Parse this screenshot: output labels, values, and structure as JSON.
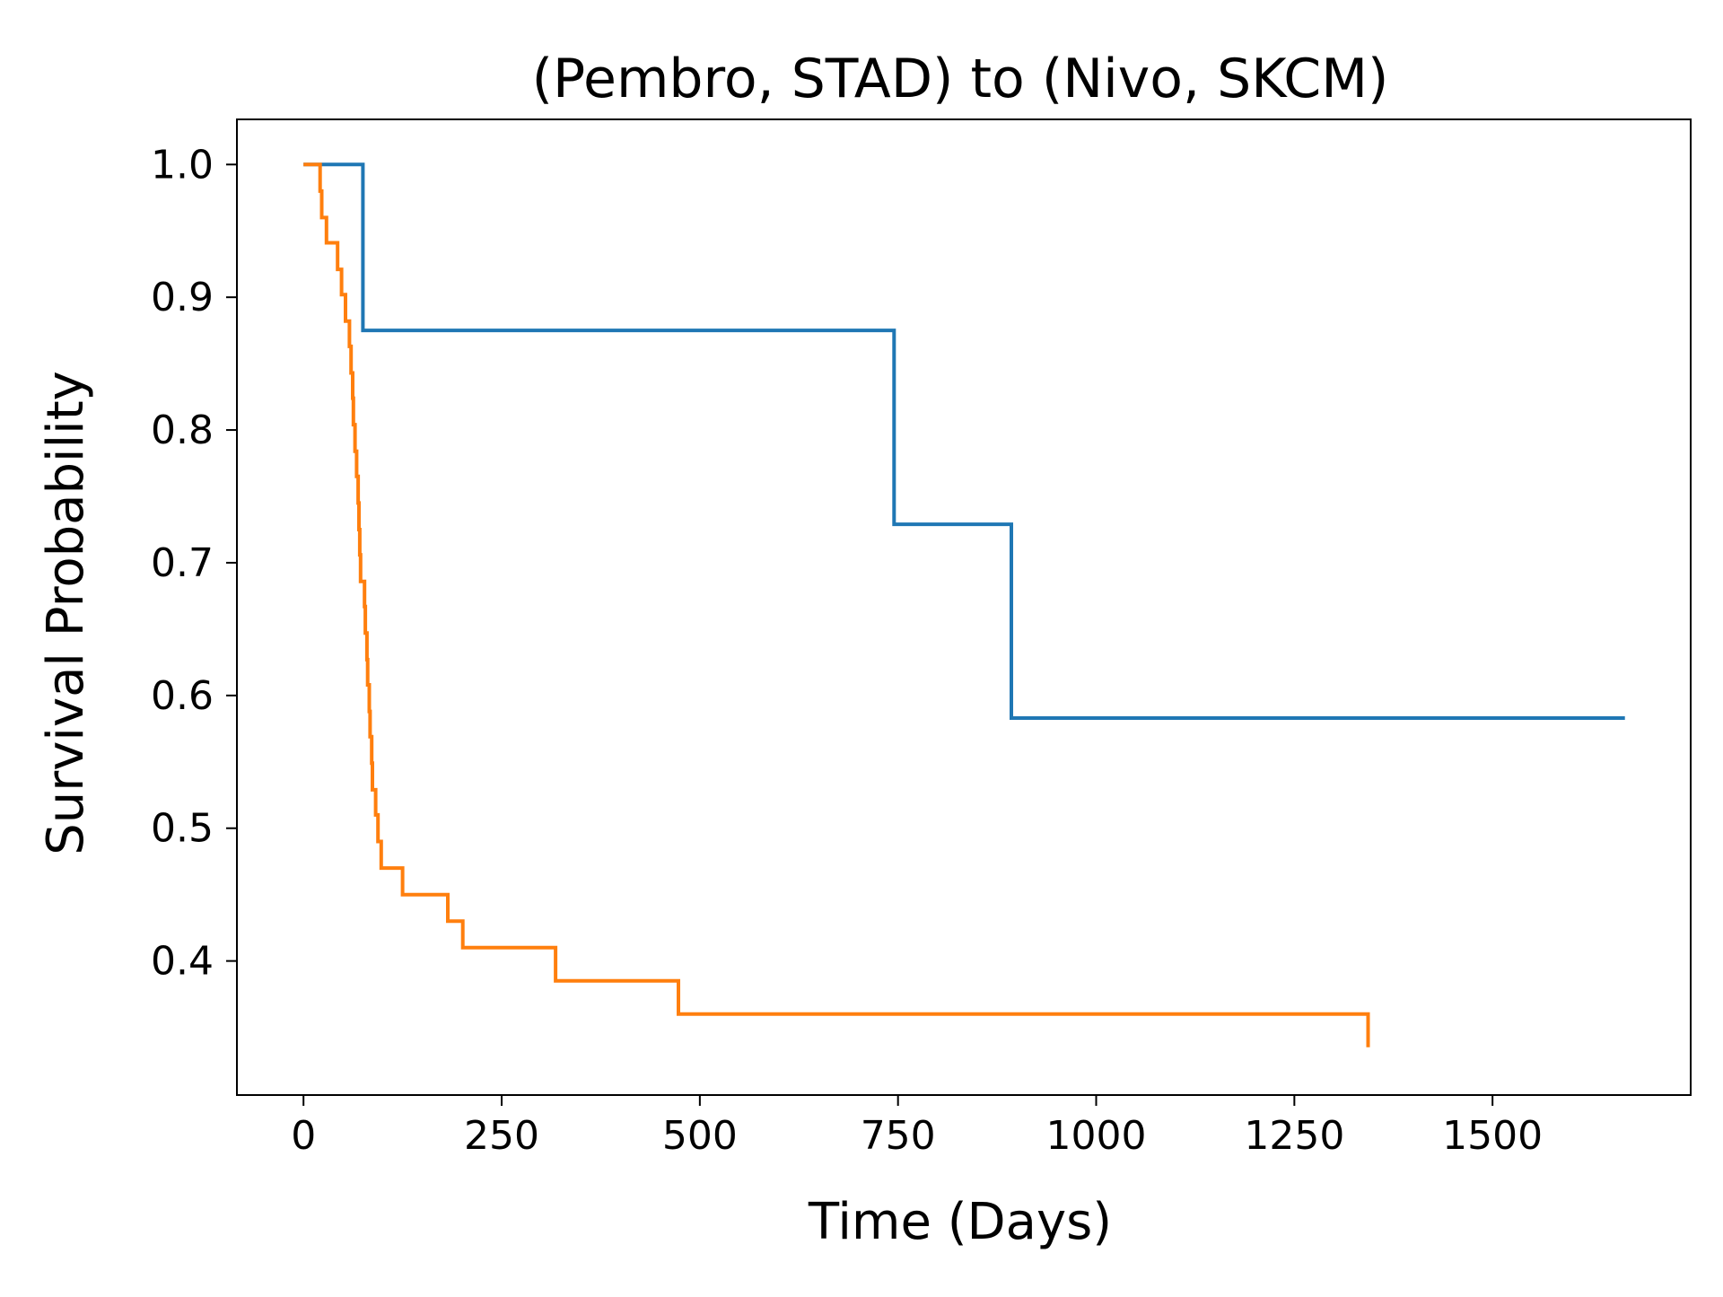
{
  "chart_data": {
    "type": "line",
    "step": true,
    "title": "(Pembro, STAD) to (Nivo, SKCM)",
    "xlabel": "Time (Days)",
    "ylabel": "Survival Probability",
    "xlim": [
      -84,
      1750
    ],
    "ylim": [
      0.299,
      1.034
    ],
    "xticks": [
      0,
      250,
      500,
      750,
      1000,
      1250,
      1500
    ],
    "xtick_labels": [
      "0",
      "250",
      "500",
      "750",
      "1000",
      "1250",
      "1500"
    ],
    "yticks": [
      0.4,
      0.5,
      0.6,
      0.7,
      0.8,
      0.9,
      1.0
    ],
    "ytick_labels": [
      "0.4",
      "0.5",
      "0.6",
      "0.7",
      "0.8",
      "0.9",
      "1.0"
    ],
    "grid": false,
    "legend": false,
    "series": [
      {
        "color": "#1f77b4",
        "x": [
          0,
          75,
          745,
          893,
          1667
        ],
        "y": [
          1.0,
          0.875,
          0.729,
          0.583,
          0.583
        ]
      },
      {
        "color": "#ff7f0e",
        "x": [
          0,
          21,
          23,
          29,
          43,
          48,
          53,
          58,
          60,
          62,
          63,
          65,
          67,
          69,
          70,
          71,
          72,
          77,
          78,
          80,
          81,
          83,
          84,
          86,
          87,
          91,
          94,
          98,
          125,
          182,
          201,
          318,
          473,
          1343
        ],
        "y": [
          1.0,
          0.98,
          0.96,
          0.941,
          0.921,
          0.902,
          0.882,
          0.863,
          0.843,
          0.824,
          0.804,
          0.784,
          0.765,
          0.745,
          0.725,
          0.706,
          0.686,
          0.667,
          0.647,
          0.627,
          0.608,
          0.588,
          0.569,
          0.549,
          0.529,
          0.51,
          0.49,
          0.47,
          0.45,
          0.43,
          0.41,
          0.385,
          0.36,
          0.335
        ]
      }
    ]
  }
}
